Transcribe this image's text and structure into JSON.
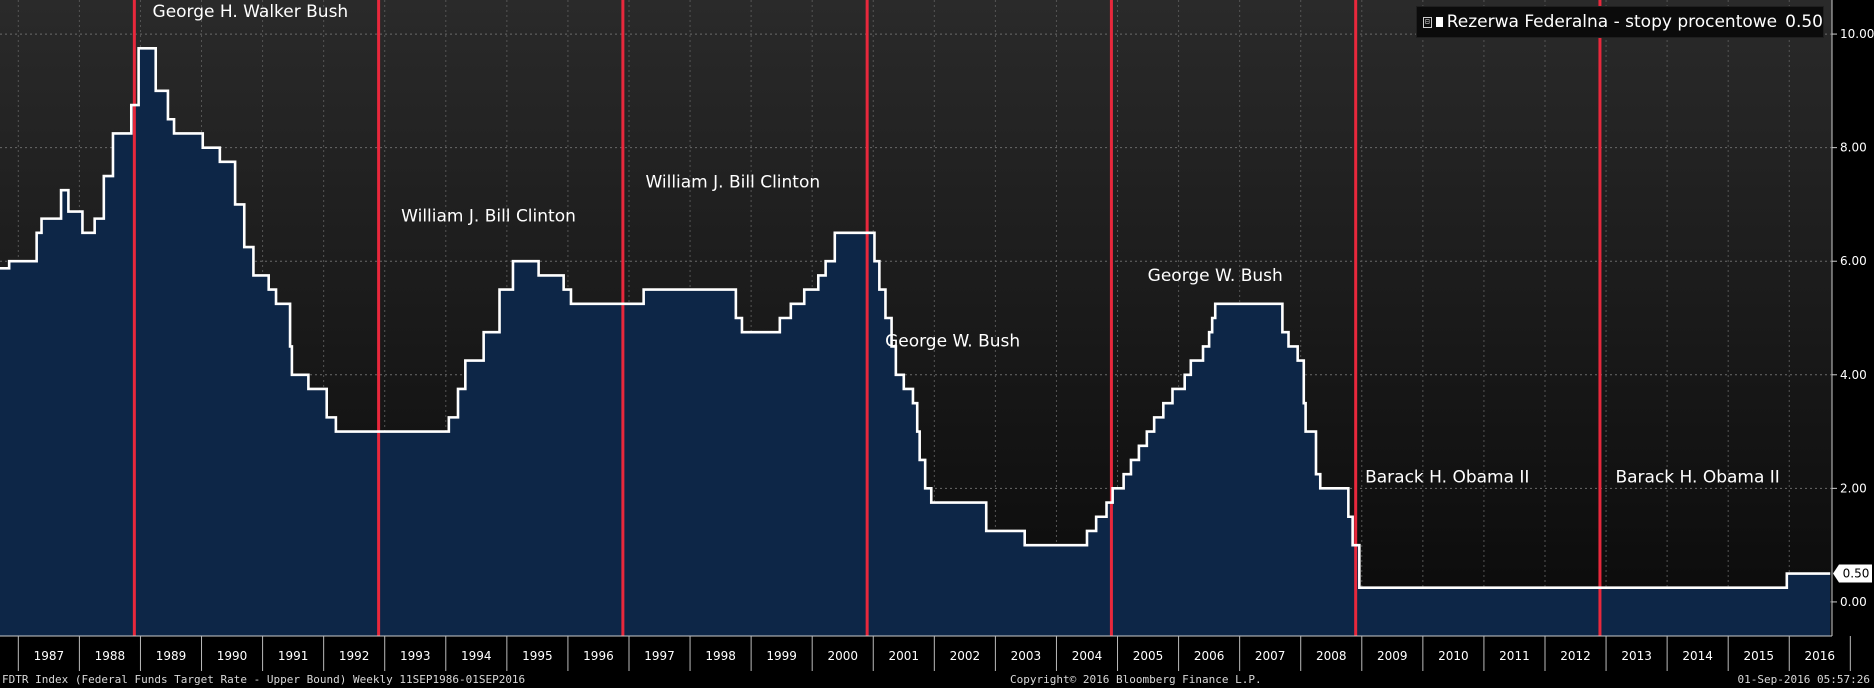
{
  "chart_data": {
    "type": "line",
    "series": [
      {
        "name": "Rezerwa Federalna - stopy procentowe",
        "last_value": "0.50",
        "color": "#ffffff",
        "fill_color": "#0d2647",
        "points": [
          [
            1986.7,
            5.875
          ],
          [
            1986.85,
            6.0
          ],
          [
            1987.3,
            6.5
          ],
          [
            1987.38,
            6.75
          ],
          [
            1987.7,
            7.25
          ],
          [
            1987.82,
            6.875
          ],
          [
            1988.05,
            6.5
          ],
          [
            1988.25,
            6.75
          ],
          [
            1988.4,
            7.5
          ],
          [
            1988.55,
            8.25
          ],
          [
            1988.85,
            8.75
          ],
          [
            1988.97,
            9.75
          ],
          [
            1989.25,
            9.0
          ],
          [
            1989.45,
            8.5
          ],
          [
            1989.55,
            8.25
          ],
          [
            1990.02,
            8.0
          ],
          [
            1990.3,
            7.75
          ],
          [
            1990.55,
            7.0
          ],
          [
            1990.7,
            6.25
          ],
          [
            1990.85,
            5.75
          ],
          [
            1991.1,
            5.5
          ],
          [
            1991.22,
            5.25
          ],
          [
            1991.45,
            4.5
          ],
          [
            1991.48,
            4.0
          ],
          [
            1991.75,
            3.75
          ],
          [
            1992.05,
            3.25
          ],
          [
            1992.2,
            3.0
          ],
          [
            1993.0,
            3.0
          ],
          [
            1994.05,
            3.25
          ],
          [
            1994.2,
            3.75
          ],
          [
            1994.32,
            4.25
          ],
          [
            1994.62,
            4.75
          ],
          [
            1994.88,
            5.5
          ],
          [
            1995.1,
            6.0
          ],
          [
            1995.52,
            5.75
          ],
          [
            1995.93,
            5.5
          ],
          [
            1996.05,
            5.25
          ],
          [
            1997.24,
            5.5
          ],
          [
            1998.75,
            5.0
          ],
          [
            1998.85,
            4.75
          ],
          [
            1999.47,
            5.0
          ],
          [
            1999.65,
            5.25
          ],
          [
            1999.87,
            5.5
          ],
          [
            2000.1,
            5.75
          ],
          [
            2000.22,
            6.0
          ],
          [
            2000.37,
            6.5
          ],
          [
            2001.02,
            6.0
          ],
          [
            2001.1,
            5.5
          ],
          [
            2001.2,
            5.0
          ],
          [
            2001.3,
            4.5
          ],
          [
            2001.37,
            4.0
          ],
          [
            2001.5,
            3.75
          ],
          [
            2001.65,
            3.5
          ],
          [
            2001.72,
            3.0
          ],
          [
            2001.76,
            2.5
          ],
          [
            2001.85,
            2.0
          ],
          [
            2001.95,
            1.75
          ],
          [
            2002.85,
            1.25
          ],
          [
            2003.48,
            1.0
          ],
          [
            2004.5,
            1.25
          ],
          [
            2004.65,
            1.5
          ],
          [
            2004.82,
            1.75
          ],
          [
            2004.92,
            2.0
          ],
          [
            2005.1,
            2.25
          ],
          [
            2005.22,
            2.5
          ],
          [
            2005.35,
            2.75
          ],
          [
            2005.48,
            3.0
          ],
          [
            2005.6,
            3.25
          ],
          [
            2005.75,
            3.5
          ],
          [
            2005.9,
            3.75
          ],
          [
            2006.1,
            4.0
          ],
          [
            2006.2,
            4.25
          ],
          [
            2006.4,
            4.5
          ],
          [
            2006.5,
            4.75
          ],
          [
            2006.55,
            5.0
          ],
          [
            2006.6,
            5.25
          ],
          [
            2007.7,
            4.75
          ],
          [
            2007.8,
            4.5
          ],
          [
            2007.95,
            4.25
          ],
          [
            2008.05,
            3.5
          ],
          [
            2008.08,
            3.0
          ],
          [
            2008.25,
            2.25
          ],
          [
            2008.32,
            2.0
          ],
          [
            2008.78,
            1.5
          ],
          [
            2008.85,
            1.0
          ],
          [
            2008.96,
            0.25
          ],
          [
            2015.96,
            0.5
          ],
          [
            2016.67,
            0.5
          ]
        ]
      }
    ],
    "x_range": [
      1986.7,
      2016.7
    ],
    "x_ticks": [
      "1987",
      "1988",
      "1989",
      "1990",
      "1991",
      "1992",
      "1993",
      "1994",
      "1995",
      "1996",
      "1997",
      "1998",
      "1999",
      "2000",
      "2001",
      "2002",
      "2003",
      "2004",
      "2005",
      "2006",
      "2007",
      "2008",
      "2009",
      "2010",
      "2011",
      "2012",
      "2013",
      "2014",
      "2015",
      "2016"
    ],
    "x_tick_start": 1987,
    "y_range": [
      -0.6,
      10.6
    ],
    "y_ticks": [
      "0.00",
      "2.00",
      "4.00",
      "6.00",
      "8.00",
      "10.00"
    ],
    "y_axis_position": "right",
    "grid": true,
    "current_value_label": "0.50",
    "current_value": 0.5,
    "vertical_markers": [
      1988.9,
      1992.9,
      1996.9,
      2000.9,
      2004.9,
      2008.9,
      2012.9
    ],
    "marker_color": "#e8283c",
    "annotations": [
      {
        "text": "George H. Walker Bush",
        "x": 1990.8,
        "y": 10.3
      },
      {
        "text": "William J. Bill Clinton",
        "x": 1994.7,
        "y": 6.7
      },
      {
        "text": "William J. Bill Clinton",
        "x": 1998.7,
        "y": 7.3
      },
      {
        "text": "George W. Bush",
        "x": 2002.3,
        "y": 4.5
      },
      {
        "text": "George W. Bush",
        "x": 2006.6,
        "y": 5.65
      },
      {
        "text": "Barack H. Obama II",
        "x": 2010.4,
        "y": 2.1
      },
      {
        "text": "Barack H. Obama II",
        "x": 2014.5,
        "y": 2.1
      }
    ],
    "legend_placement": "top-right"
  },
  "legend": {
    "toggle": "⊟",
    "label": "Rezerwa Federalna - stopy procentowe",
    "value": "0.50"
  },
  "footer": {
    "left": "FDTR Index (Federal Funds Target Rate - Upper Bound)  Weekly 11SEP1986-01SEP2016",
    "center": "Copyright© 2016 Bloomberg Finance L.P.",
    "right": "01-Sep-2016 05:57:26"
  }
}
